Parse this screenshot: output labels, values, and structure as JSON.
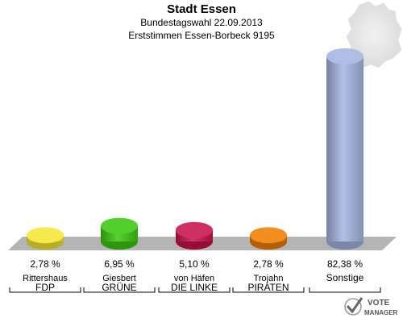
{
  "header": {
    "title": "Stadt Essen",
    "subtitle1": "Bundestagswahl 22.09.2013",
    "subtitle2": "Erststimmen Essen-Borbeck 9195"
  },
  "logo": {
    "line1": "VOTE",
    "line2": "MANAGER"
  },
  "chart_data": {
    "type": "bar",
    "categories": [
      "FDP",
      "GRÜNE",
      "DIE LINKE",
      "PIRATEN",
      "Sonstige"
    ],
    "candidates": [
      "Rittershaus",
      "Giesbert",
      "von Häfen",
      "Trojahn",
      ""
    ],
    "values": [
      2.78,
      6.95,
      5.1,
      2.78,
      82.38
    ],
    "value_labels": [
      "2,78 %",
      "6,95 %",
      "5,10 %",
      "2,78 %",
      "82,38 %"
    ],
    "colors": [
      "#f5e633",
      "#3cc80f",
      "#c8124a",
      "#f07d00",
      "#a4b4e0"
    ],
    "ylim": [
      0,
      82.38
    ],
    "title": "",
    "xlabel": "",
    "ylabel": ""
  }
}
